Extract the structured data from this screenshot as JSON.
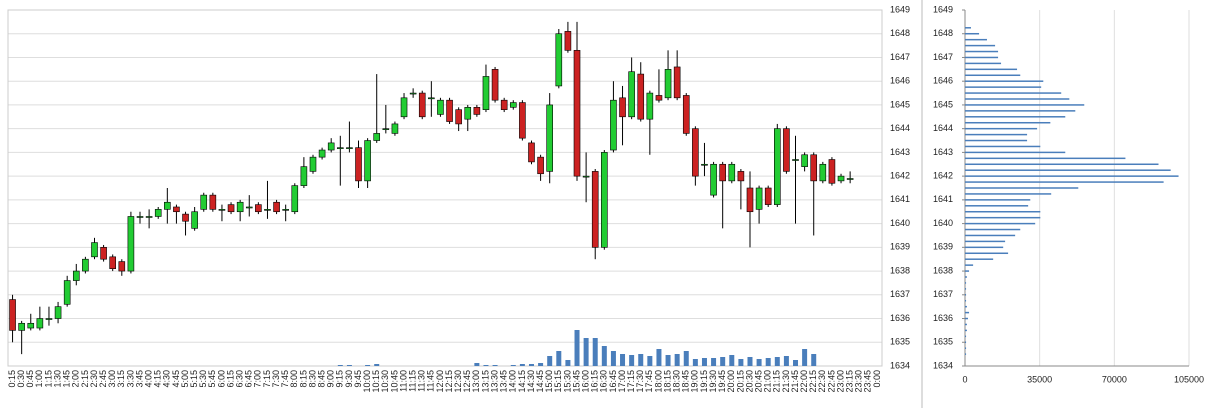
{
  "chart_data": [
    {
      "type": "candlestick",
      "categories": [
        "0:15",
        "0:30",
        "0:45",
        "1:00",
        "1:15",
        "1:30",
        "1:45",
        "2:00",
        "2:15",
        "2:30",
        "2:45",
        "3:00",
        "3:15",
        "3:30",
        "3:45",
        "4:00",
        "4:15",
        "4:30",
        "4:45",
        "5:00",
        "5:15",
        "5:30",
        "5:45",
        "6:00",
        "6:15",
        "6:30",
        "6:45",
        "7:00",
        "7:15",
        "7:30",
        "7:45",
        "8:00",
        "8:15",
        "8:30",
        "8:45",
        "9:00",
        "9:15",
        "9:30",
        "9:45",
        "10:00",
        "10:15",
        "10:30",
        "10:45",
        "11:00",
        "11:15",
        "11:30",
        "11:45",
        "12:00",
        "12:15",
        "12:30",
        "12:45",
        "13:00",
        "13:15",
        "13:30",
        "13:45",
        "14:00",
        "14:15",
        "14:30",
        "14:45",
        "15:00",
        "15:15",
        "15:30",
        "15:45",
        "16:00",
        "16:15",
        "16:30",
        "16:45",
        "17:00",
        "17:15",
        "17:30",
        "17:45",
        "18:00",
        "18:15",
        "18:30",
        "18:45",
        "19:00",
        "19:15",
        "19:30",
        "19:45",
        "20:00",
        "20:15",
        "20:30",
        "20:45",
        "21:00",
        "21:15",
        "21:30",
        "21:45",
        "22:00",
        "22:15",
        "22:30",
        "22:45",
        "23:00",
        "23:15",
        "23:30",
        "23:45",
        "0:00"
      ],
      "open": [
        1636.8,
        1635.5,
        1635.6,
        1635.6,
        1636.0,
        1636.0,
        1636.6,
        1637.6,
        1638.0,
        1638.6,
        1639.0,
        1638.6,
        1638.4,
        1638.0,
        1640.3,
        1640.3,
        1640.3,
        1640.6,
        1640.7,
        1640.4,
        1639.8,
        1640.6,
        1641.2,
        1640.6,
        1640.8,
        1640.5,
        1640.7,
        1640.8,
        1640.6,
        1640.9,
        1640.6,
        1640.5,
        1641.6,
        1642.2,
        1642.8,
        1643.1,
        1643.2,
        1643.2,
        1643.2,
        1641.8,
        1643.5,
        1644.0,
        1643.8,
        1644.5,
        1645.5,
        1645.5,
        1645.3,
        1644.6,
        1645.2,
        1644.8,
        1644.4,
        1644.9,
        1644.8,
        1646.5,
        1645.2,
        1644.9,
        1645.1,
        1643.4,
        1642.8,
        1642.2,
        1645.8,
        1648.1,
        1647.3,
        1642.0,
        1642.2,
        1639.0,
        1643.1,
        1645.3,
        1644.5,
        1646.3,
        1644.4,
        1645.4,
        1645.3,
        1646.6,
        1645.4,
        1644.0,
        1642.5,
        1641.2,
        1642.5,
        1641.8,
        1642.2,
        1641.5,
        1640.6,
        1641.5,
        1640.8,
        1644.0,
        1642.7,
        1642.4,
        1642.9,
        1641.8,
        1642.7,
        1641.8,
        1641.9,
        null,
        null,
        null
      ],
      "high": [
        1637.0,
        1635.9,
        1636.2,
        1636.5,
        1636.5,
        1636.7,
        1637.8,
        1638.3,
        1638.6,
        1639.4,
        1639.1,
        1638.7,
        1638.5,
        1640.5,
        1640.5,
        1640.6,
        1640.7,
        1641.5,
        1640.8,
        1640.5,
        1640.7,
        1641.3,
        1641.3,
        1640.8,
        1640.9,
        1641.0,
        1641.2,
        1640.9,
        1641.8,
        1641.0,
        1640.8,
        1641.7,
        1642.8,
        1642.9,
        1643.2,
        1643.6,
        1643.7,
        1644.3,
        1643.5,
        1643.6,
        1646.3,
        1645.0,
        1644.3,
        1645.5,
        1645.7,
        1645.6,
        1646.0,
        1645.3,
        1645.3,
        1644.9,
        1645.0,
        1645.0,
        1646.7,
        1646.6,
        1645.3,
        1645.2,
        1645.2,
        1643.5,
        1642.9,
        1645.5,
        1648.2,
        1648.5,
        1648.5,
        1643.0,
        1642.3,
        1643.1,
        1646.0,
        1645.8,
        1647.0,
        1646.8,
        1645.6,
        1646.5,
        1647.3,
        1647.3,
        1645.5,
        1644.1,
        1643.4,
        1642.6,
        1642.6,
        1642.6,
        1642.3,
        1642.2,
        1641.6,
        1641.6,
        1644.2,
        1644.1,
        1643.7,
        1643.0,
        1643.0,
        1642.6,
        1642.8,
        1642.1,
        1642.2,
        null,
        null,
        null
      ],
      "low": [
        1635.0,
        1634.5,
        1635.5,
        1635.5,
        1635.7,
        1635.8,
        1636.5,
        1637.4,
        1637.9,
        1638.5,
        1638.4,
        1638.0,
        1637.8,
        1637.9,
        1640.0,
        1639.8,
        1640.2,
        1640.0,
        1640.0,
        1639.5,
        1639.7,
        1640.5,
        1640.5,
        1640.1,
        1640.4,
        1640.1,
        1640.3,
        1640.4,
        1640.2,
        1640.4,
        1640.1,
        1640.4,
        1641.5,
        1642.1,
        1642.7,
        1643.0,
        1641.6,
        1643.0,
        1641.5,
        1641.5,
        1643.4,
        1643.8,
        1643.7,
        1644.4,
        1645.3,
        1644.4,
        1644.5,
        1644.5,
        1644.2,
        1643.9,
        1643.9,
        1644.5,
        1644.7,
        1645.1,
        1644.7,
        1644.8,
        1643.5,
        1642.5,
        1641.8,
        1641.7,
        1645.7,
        1647.2,
        1641.8,
        1640.9,
        1638.5,
        1638.9,
        1643.0,
        1643.3,
        1644.4,
        1644.3,
        1642.9,
        1645.1,
        1645.2,
        1645.2,
        1643.7,
        1641.6,
        1642.0,
        1641.1,
        1639.8,
        1641.7,
        1640.6,
        1639.0,
        1640.0,
        1640.7,
        1640.7,
        1642.1,
        1640.0,
        1642.2,
        1639.5,
        1641.7,
        1641.6,
        1641.7,
        1641.7,
        null,
        null,
        null
      ],
      "close": [
        1635.5,
        1635.8,
        1635.8,
        1636.0,
        1636.0,
        1636.5,
        1637.6,
        1638.0,
        1638.5,
        1639.2,
        1638.5,
        1638.1,
        1638.0,
        1640.3,
        1640.3,
        1640.3,
        1640.6,
        1640.9,
        1640.5,
        1640.1,
        1640.5,
        1641.2,
        1640.6,
        1640.6,
        1640.5,
        1640.9,
        1640.7,
        1640.5,
        1640.6,
        1640.5,
        1640.6,
        1641.6,
        1642.4,
        1642.8,
        1643.1,
        1643.4,
        1643.2,
        1643.2,
        1641.8,
        1643.5,
        1643.8,
        1644.0,
        1644.2,
        1645.3,
        1645.5,
        1644.5,
        1645.3,
        1645.2,
        1644.3,
        1644.2,
        1644.9,
        1644.6,
        1646.2,
        1645.2,
        1644.8,
        1645.1,
        1643.6,
        1642.6,
        1642.1,
        1645.0,
        1648.0,
        1647.3,
        1642.0,
        1642.0,
        1639.0,
        1643.0,
        1645.2,
        1644.5,
        1646.4,
        1644.4,
        1645.5,
        1645.2,
        1646.5,
        1645.3,
        1643.8,
        1642.0,
        1642.5,
        1642.5,
        1641.8,
        1642.5,
        1641.8,
        1640.5,
        1641.5,
        1640.8,
        1644.0,
        1642.2,
        1642.7,
        1642.9,
        1641.8,
        1642.5,
        1641.7,
        1642.0,
        1641.9,
        null,
        null,
        null
      ],
      "volume": [
        0,
        0,
        0,
        0,
        0,
        0,
        0,
        0,
        0,
        0,
        0,
        0,
        0,
        0,
        0,
        0,
        0,
        0,
        0,
        0,
        0,
        0,
        0,
        0,
        0,
        0,
        0,
        0,
        0,
        0,
        0,
        0,
        0,
        0,
        0,
        0,
        500,
        500,
        0,
        500,
        1000,
        0,
        0,
        0,
        0,
        0,
        0,
        0,
        0,
        0,
        0,
        1500,
        500,
        500,
        0,
        500,
        1000,
        1000,
        1500,
        5000,
        7500,
        3000,
        18000,
        14000,
        14000,
        10000,
        7500,
        6000,
        5500,
        6000,
        5000,
        8500,
        5500,
        6000,
        7500,
        3500,
        4000,
        4000,
        4500,
        5500,
        3500,
        4500,
        3500,
        4000,
        4500,
        5000,
        3000,
        8500,
        6000,
        0,
        0,
        0,
        0,
        null,
        null,
        null
      ],
      "up_color": "#22cc33",
      "down_color": "#cc2222",
      "volume_color": "#4a7ebb",
      "ylim": [
        1634,
        1649
      ],
      "yticks": [
        1634,
        1635,
        1636,
        1637,
        1638,
        1639,
        1640,
        1641,
        1642,
        1643,
        1644,
        1645,
        1646,
        1647,
        1648,
        1649
      ],
      "grid": true
    },
    {
      "type": "barh",
      "y": [
        1648.25,
        1648,
        1647.75,
        1647.5,
        1647.25,
        1647,
        1646.75,
        1646.5,
        1646.25,
        1646,
        1645.75,
        1645.5,
        1645.25,
        1645,
        1644.75,
        1644.5,
        1644.25,
        1644,
        1643.75,
        1643.5,
        1643.25,
        1643,
        1642.75,
        1642.5,
        1642.25,
        1642,
        1641.75,
        1641.5,
        1641.25,
        1641,
        1640.75,
        1640.5,
        1640.25,
        1640,
        1639.75,
        1639.5,
        1639.25,
        1639,
        1638.75,
        1638.5,
        1638.25,
        1638,
        1637.75,
        1637.5,
        1637.25,
        1637,
        1636.75,
        1636.5,
        1636.25,
        1636,
        1635.75,
        1635.5,
        1635.25,
        1635,
        1634.75,
        1634.5
      ],
      "values": [
        2800,
        6600,
        10300,
        14100,
        15500,
        15500,
        16900,
        24400,
        25900,
        36700,
        35700,
        45100,
        48900,
        55900,
        51700,
        47000,
        40000,
        33800,
        29100,
        29100,
        35300,
        47000,
        75200,
        90700,
        96400,
        100100,
        93100,
        53100,
        40400,
        30600,
        29600,
        35300,
        35300,
        32900,
        25900,
        23500,
        18800,
        17900,
        20200,
        13200,
        3800,
        1900,
        900,
        500,
        500,
        500,
        500,
        900,
        1900,
        1400,
        900,
        900,
        500,
        500,
        500,
        500
      ],
      "color": "#4a7ebb",
      "xlim": [
        0,
        105000
      ],
      "xticks": [
        0,
        35000,
        70000,
        105000
      ],
      "ylim": [
        1634,
        1649
      ],
      "yticks": [
        1634,
        1635,
        1636,
        1637,
        1638,
        1639,
        1640,
        1641,
        1642,
        1643,
        1644,
        1645,
        1646,
        1647,
        1648,
        1649
      ],
      "grid": true
    }
  ]
}
